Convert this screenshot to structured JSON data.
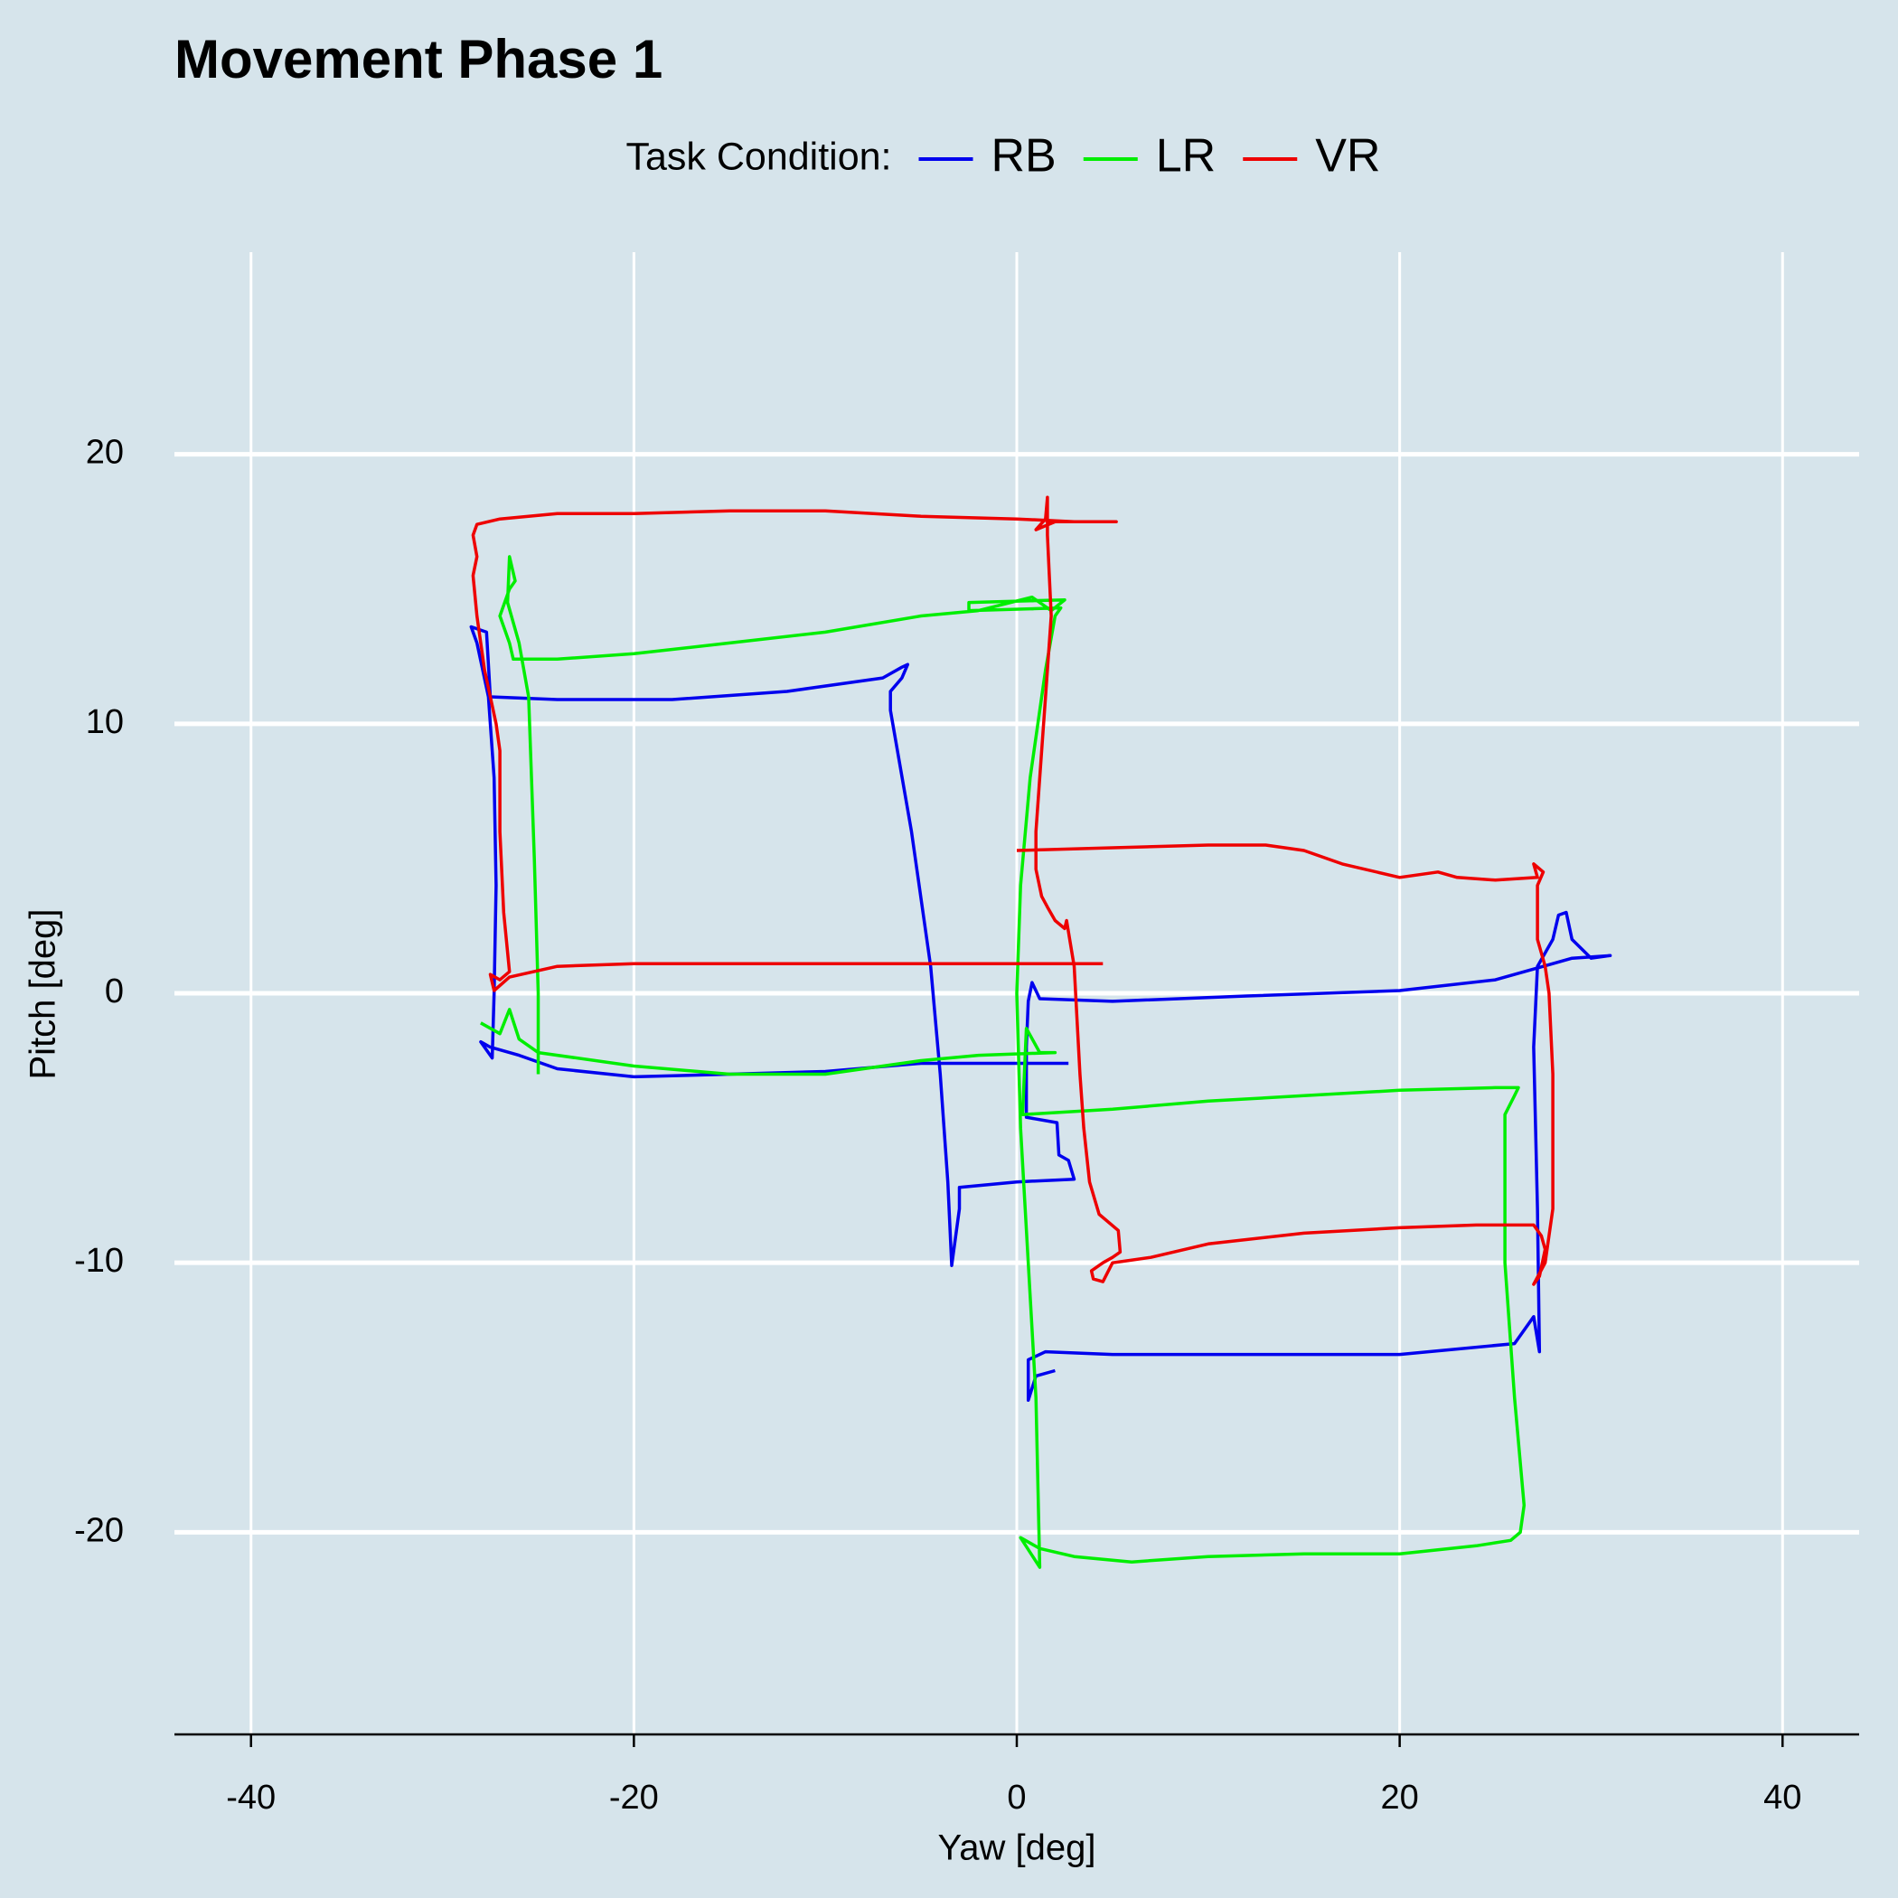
{
  "chart_data": {
    "type": "line",
    "title": "Movement Phase 1",
    "legend_title": "Task Condition:",
    "legend_position": "top",
    "x_label": "Yaw [deg]",
    "y_label": "Pitch [deg]",
    "grid": true,
    "xlim": [
      -44,
      44
    ],
    "ylim": [
      -27.5,
      27.5
    ],
    "xticks": [
      -40,
      -20,
      0,
      20,
      40
    ],
    "yticks": [
      -20,
      -10,
      0,
      10,
      20
    ],
    "series": [
      {
        "name": "RB",
        "color": "#0000ee",
        "x": [
          2.7,
          -5,
          -10,
          -15,
          -20,
          -24,
          -26,
          -27.5,
          -28,
          -27.4,
          -27.3,
          -27.2,
          -27.3,
          -27.6,
          -28.2,
          -28.5,
          -27.7,
          -27.5,
          -24,
          -18,
          -12,
          -7,
          -6,
          -5.7,
          -6,
          -6.6,
          -6.6,
          -5.5,
          -4.5,
          -4,
          -3.6,
          -3.4,
          -3,
          -3,
          0,
          3,
          2.7,
          2.2,
          2.1,
          0.5,
          0.5,
          0.6,
          0.8,
          1.2,
          5,
          12,
          20,
          25,
          27.5,
          29,
          31,
          30,
          29,
          28.7,
          28.3,
          28,
          27.2,
          27,
          27.2,
          27.3,
          27,
          26,
          20,
          12,
          5,
          1.5,
          0.6,
          0.6,
          1,
          2
        ],
        "y": [
          -2.6,
          -2.6,
          -2.9,
          -3.0,
          -3.1,
          -2.8,
          -2.3,
          -2.0,
          -1.8,
          -2.4,
          0,
          4,
          8,
          11,
          13,
          13.6,
          13.4,
          11,
          10.9,
          10.9,
          11.2,
          11.7,
          12.1,
          12.2,
          11.7,
          11.2,
          10.5,
          6,
          1,
          -3,
          -7,
          -10.1,
          -8,
          -7.2,
          -7.0,
          -6.9,
          -6.2,
          -6,
          -4.8,
          -4.6,
          -2,
          -0.3,
          0.4,
          -0.2,
          -0.3,
          -0.1,
          0.1,
          0.5,
          1,
          1.3,
          1.4,
          1.3,
          2,
          3,
          2.9,
          2,
          1,
          -2,
          -8,
          -13.3,
          -12,
          -13,
          -13.4,
          -13.4,
          -13.4,
          -13.3,
          -13.6,
          -15.1,
          -14.2,
          -14
        ]
      },
      {
        "name": "LR",
        "color": "#00ee00",
        "x": [
          -28,
          -27,
          -26.5,
          -26,
          -25,
          -20,
          -15,
          -10,
          -5,
          -2,
          2,
          1.2,
          0.5,
          0.3,
          5,
          10,
          15,
          20,
          25,
          26.2,
          26,
          25.5,
          25.5,
          26,
          26.5,
          26.3,
          25.8,
          24,
          20,
          15,
          10,
          6,
          3,
          1.2,
          0.2,
          1.2,
          1.0,
          0.6,
          0.2,
          0,
          0.2,
          0.7,
          1.5,
          2,
          2.3,
          -2.5,
          -2.5,
          2.5,
          1.8,
          0.8,
          -2,
          -5,
          -10,
          -15,
          -20,
          -24,
          -26.3,
          -26.5,
          -27,
          -26.5,
          -26.2,
          -26.5,
          -26.6,
          -26,
          -25.5,
          -25.2,
          -25,
          -25
        ],
        "y": [
          -1.1,
          -1.5,
          -0.6,
          -1.7,
          -2.2,
          -2.7,
          -3.0,
          -3.0,
          -2.5,
          -2.3,
          -2.2,
          -2.2,
          -1.3,
          -4.5,
          -4.3,
          -4.0,
          -3.8,
          -3.6,
          -3.5,
          -3.5,
          -3.8,
          -4.5,
          -10,
          -15,
          -19,
          -20,
          -20.3,
          -20.5,
          -20.8,
          -20.8,
          -20.9,
          -21.1,
          -20.9,
          -20.6,
          -20.2,
          -21.3,
          -15,
          -10,
          -5,
          0,
          4,
          8,
          12,
          14,
          14.3,
          14.2,
          14.5,
          14.6,
          14.2,
          14.7,
          14.2,
          14.0,
          13.4,
          13.0,
          12.6,
          12.4,
          12.4,
          13,
          14,
          15,
          15.3,
          16.2,
          14.5,
          13.0,
          11,
          5,
          0,
          -3.0
        ]
      },
      {
        "name": "VR",
        "color": "#ee0000",
        "x": [
          4.5,
          0,
          -5,
          -10,
          -15,
          -20,
          -24,
          -26.5,
          -27.3,
          -27.5,
          -27,
          -26.5,
          -26.8,
          -27,
          -27,
          -27.2,
          -27.8,
          -28.2,
          -28.4,
          -28.2,
          -28.4,
          -28.2,
          -27,
          -24,
          -20,
          -15,
          -10,
          -5,
          0,
          3,
          5.2,
          2,
          1,
          1.5,
          1.6,
          1.6,
          1.8,
          1.5,
          1.2,
          1,
          1,
          1.3,
          1.6,
          2,
          2.5,
          2.6,
          3,
          3.3,
          3.5,
          3.8,
          4.3,
          5.3,
          5.4,
          5,
          4.5,
          3.9,
          4,
          4.5,
          5,
          7,
          10,
          15,
          20,
          24,
          27,
          27.4,
          27.6,
          27.3,
          27,
          27.6,
          28,
          28,
          27.8,
          27.6,
          27.2,
          27.2,
          27.5,
          27,
          27.2,
          25,
          23,
          22,
          20,
          17,
          15,
          13,
          10,
          5,
          0
        ],
        "y": [
          1.1,
          1.1,
          1.1,
          1.1,
          1.1,
          1.1,
          1.0,
          0.6,
          0.1,
          0.7,
          0.5,
          0.8,
          3,
          6,
          9,
          10,
          12,
          14,
          15.5,
          16.2,
          17,
          17.4,
          17.6,
          17.8,
          17.8,
          17.9,
          17.9,
          17.7,
          17.6,
          17.5,
          17.5,
          17.5,
          17.2,
          17.6,
          18.4,
          17,
          14,
          11,
          8,
          6,
          4.6,
          3.6,
          3.2,
          2.7,
          2.4,
          2.7,
          1,
          -3,
          -5,
          -7,
          -8.2,
          -8.8,
          -9.6,
          -9.8,
          -10,
          -10.3,
          -10.6,
          -10.7,
          -10,
          -9.8,
          -9.3,
          -8.9,
          -8.7,
          -8.6,
          -8.6,
          -9,
          -9.5,
          -10.5,
          -10.8,
          -10,
          -8,
          -3,
          0,
          1,
          2,
          4,
          4.5,
          4.8,
          4.3,
          4.2,
          4.3,
          4.5,
          4.3,
          4.8,
          5.3,
          5.5,
          5.5,
          5.4,
          5.3
        ]
      }
    ]
  }
}
